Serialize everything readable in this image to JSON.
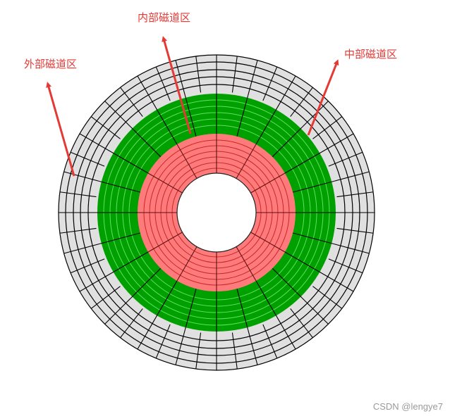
{
  "labels": {
    "outer": "外部磁道区",
    "inner": "内部磁道区",
    "middle": "中部磁道区"
  },
  "watermark": "CSDN @lengye7",
  "colors": {
    "outer_zone": "#e0e0e0",
    "middle_zone": "#00a000",
    "inner_zone": "#ff7b7b",
    "arrow": "#e53935"
  }
}
